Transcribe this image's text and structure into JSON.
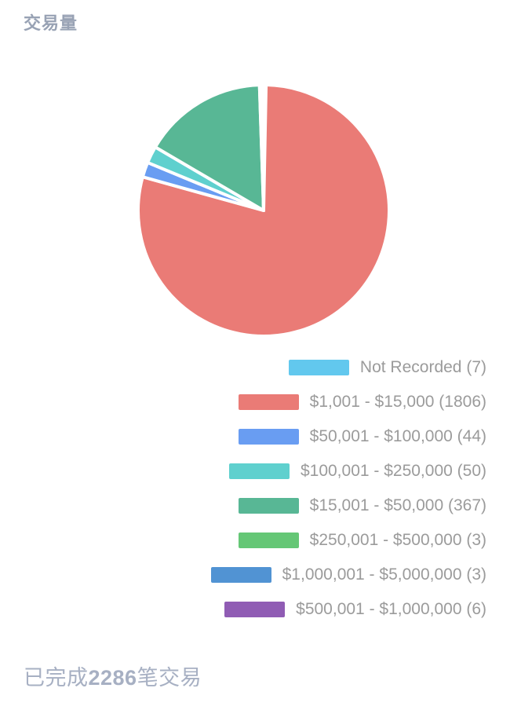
{
  "title": "交易量",
  "chart_data": {
    "type": "pie",
    "title": "交易量",
    "total": 2286,
    "start_angle_deg": 0,
    "direction": "clockwise",
    "legend_position": "bottom-right",
    "gap_color": "#ffffff",
    "slices": [
      {
        "label": "Not Recorded",
        "count": 7,
        "color": "#62c8ee"
      },
      {
        "label": "$1,001 - $15,000",
        "count": 1806,
        "color": "#ea7b76"
      },
      {
        "label": "$50,001 - $100,000",
        "count": 44,
        "color": "#699df2"
      },
      {
        "label": "$100,001 - $250,000",
        "count": 50,
        "color": "#5fd0ce"
      },
      {
        "label": "$15,001 - $50,000",
        "count": 367,
        "color": "#58b795"
      },
      {
        "label": "$250,001 - $500,000",
        "count": 3,
        "color": "#65c776"
      },
      {
        "label": "$1,000,001 - $5,000,000",
        "count": 3,
        "color": "#5193d3"
      },
      {
        "label": "$500,001 - $1,000,000",
        "count": 6,
        "color": "#905cb4"
      }
    ]
  },
  "legend": {
    "items": [
      {
        "text": "Not Recorded (7)",
        "color": "#62c8ee"
      },
      {
        "text": "$1,001 - $15,000 (1806)",
        "color": "#ea7b76"
      },
      {
        "text": "$50,001 - $100,000 (44)",
        "color": "#699df2"
      },
      {
        "text": "$100,001 - $250,000 (50)",
        "color": "#5fd0ce"
      },
      {
        "text": "$15,001 - $50,000 (367)",
        "color": "#58b795"
      },
      {
        "text": "$250,001 - $500,000 (3)",
        "color": "#65c776"
      },
      {
        "text": "$1,000,001 - $5,000,000 (3)",
        "color": "#5193d3"
      },
      {
        "text": "$500,001 - $1,000,000 (6)",
        "color": "#905cb4"
      }
    ]
  },
  "footer": {
    "prefix": "已完成",
    "count": "2286",
    "suffix": "笔交易"
  }
}
